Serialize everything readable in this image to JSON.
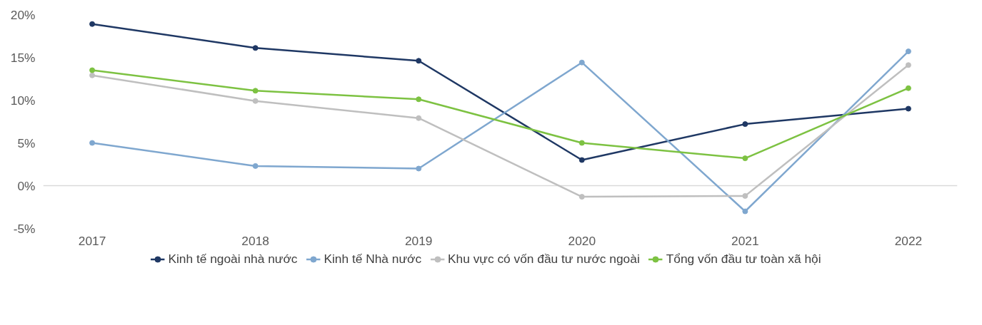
{
  "chart_data": {
    "type": "line",
    "categories": [
      "2017",
      "2018",
      "2019",
      "2020",
      "2021",
      "2022"
    ],
    "series": [
      {
        "name": "Kinh tế ngoài nhà nước",
        "color": "#1f3864",
        "values": [
          18.9,
          16.1,
          14.6,
          3.0,
          7.2,
          9.0
        ]
      },
      {
        "name": "Kinh tế Nhà nước",
        "color": "#7fa7cf",
        "values": [
          5.0,
          2.3,
          2.0,
          14.4,
          -3.0,
          15.7
        ]
      },
      {
        "name": "Khu vực có vốn đầu tư nước ngoài",
        "color": "#bfbfbf",
        "values": [
          12.9,
          9.9,
          7.9,
          -1.3,
          -1.2,
          14.1
        ]
      },
      {
        "name": "Tổng vốn đầu tư toàn xã hội",
        "color": "#7dc242",
        "values": [
          13.5,
          11.1,
          10.1,
          5.0,
          3.2,
          11.4
        ]
      }
    ],
    "ylim": [
      -5,
      20
    ],
    "yticks": [
      {
        "value": -5,
        "label": "-5%"
      },
      {
        "value": 0,
        "label": "0%"
      },
      {
        "value": 5,
        "label": "5%"
      },
      {
        "value": 10,
        "label": "10%"
      },
      {
        "value": 15,
        "label": "15%"
      },
      {
        "value": 20,
        "label": "20%"
      }
    ],
    "ref_lines": [
      {
        "axis": "y",
        "value": 0,
        "color": "#d9d9d9"
      }
    ],
    "grid": false,
    "legend": "bottom",
    "marker": "circle",
    "line_style": "solid"
  }
}
